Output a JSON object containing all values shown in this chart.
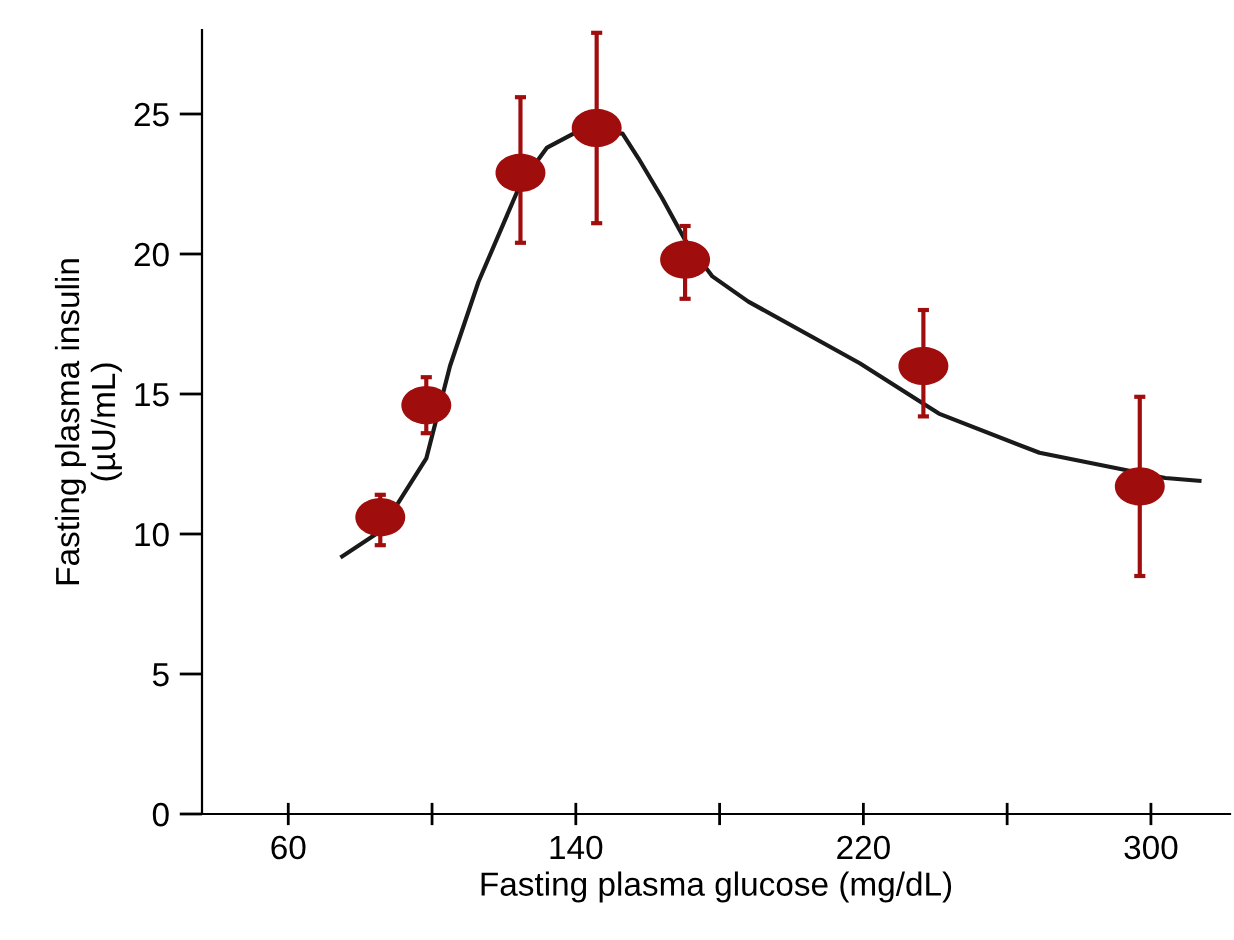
{
  "chart_data": {
    "type": "scatter",
    "xlabel": "Fasting plasma glucose (mg/dL)",
    "ylabel": "Fasting plasma insulin\n(µU/mL)",
    "xlim": [
      36,
      322
    ],
    "ylim": [
      0,
      28
    ],
    "xticks": [
      60,
      {
        "value": 100,
        "label": null
      },
      140,
      {
        "value": 180,
        "label": null
      },
      220,
      {
        "value": 260,
        "label": null
      },
      300
    ],
    "yticks": [
      0,
      5,
      10,
      15,
      20,
      25
    ],
    "grid": false,
    "marker": "circle",
    "series": [
      {
        "color": "#a00d0d",
        "x": [
          85.6,
          98.4,
          124.6,
          145.8,
          170.4,
          236.7,
          296.9
        ],
        "values": [
          10.6,
          14.6,
          22.9,
          24.5,
          19.8,
          16.0,
          11.7
        ],
        "errors": [
          [
            9.6,
            11.4
          ],
          [
            13.6,
            15.6
          ],
          [
            20.4,
            25.6
          ],
          [
            21.1,
            27.9
          ],
          [
            18.4,
            21.0
          ],
          [
            14.2,
            18.0
          ],
          [
            8.5,
            14.9
          ]
        ]
      },
      {
        "type": "line",
        "color": "#1a1a1a",
        "line_style": "solid",
        "marker": "none",
        "x": [
          75,
          85.6,
          98.4,
          105,
          112.9,
          124.6,
          132,
          140.8,
          153,
          157.5,
          164,
          170.4,
          178,
          188,
          219,
          241,
          269,
          304,
          313.5
        ],
        "values": [
          9.2,
          10.1,
          12.7,
          16.0,
          19.0,
          22.5,
          23.8,
          24.4,
          24.3,
          23.4,
          22.0,
          20.5,
          19.2,
          18.3,
          16.1,
          14.3,
          12.9,
          12.0,
          11.9
        ]
      }
    ]
  }
}
